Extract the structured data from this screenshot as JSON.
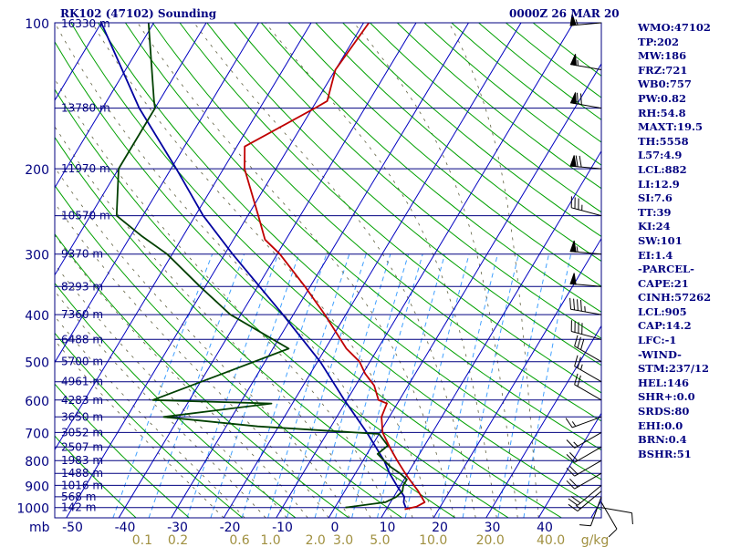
{
  "header": {
    "title": "RK102 (47102) Sounding",
    "datetime": "0000Z 26 MAR 20"
  },
  "stats": [
    "WMO:47102",
    "TP:202",
    "MW:186",
    "FRZ:721",
    "WB0:757",
    "PW:0.82",
    "RH:54.8",
    "MAXT:19.5",
    "TH:5558",
    "L57:4.9",
    "LCL:882",
    "LI:12.9",
    "SI:7.6",
    "TT:39",
    "KI:24",
    "SW:101",
    "EI:1.4",
    "-PARCEL-",
    "CAPE:21",
    "CINH:57262",
    "LCL:905",
    "CAP:14.2",
    "LFC:-1",
    "-WIND-",
    "STM:237/12",
    "HEL:146",
    "SHR+:0.0",
    "SRDS:80",
    "EHI:0.0",
    "BRN:0.4",
    "BSHR:51"
  ],
  "colors": {
    "isobar": "#000080",
    "isotherm": "#0000c0",
    "dry_adiabat": "#00a000",
    "moist_adiabat": "#606040",
    "mixing_ratio": "#40a0ff",
    "temperature": "#c00000",
    "dewpoint": "#004000",
    "parcel": "#0000a0",
    "axis_text": "#000080",
    "mixing_text": "#a09040"
  },
  "chart_data": {
    "type": "skew-t",
    "xlabel_prefix": "mb",
    "x_ticks": [
      "-50",
      "-40",
      "-30",
      "-20",
      "-10",
      "0",
      "10",
      "20",
      "30",
      "40"
    ],
    "x_tick_values": [
      -50,
      -40,
      -30,
      -20,
      -10,
      0,
      10,
      20,
      30,
      40
    ],
    "pressure_ticks": [
      {
        "p": 100,
        "label": "100"
      },
      {
        "p": 200,
        "label": "200"
      },
      {
        "p": 300,
        "label": "300"
      },
      {
        "p": 400,
        "label": "400"
      },
      {
        "p": 500,
        "label": "500"
      },
      {
        "p": 600,
        "label": "600"
      },
      {
        "p": 700,
        "label": "700"
      },
      {
        "p": 800,
        "label": "800"
      },
      {
        "p": 900,
        "label": "900"
      },
      {
        "p": 1000,
        "label": "1000"
      }
    ],
    "mixing_ratio_unit": "g/kg",
    "mixing_ratio_labels": [
      {
        "w": 0.1,
        "label": "0.1"
      },
      {
        "w": 0.2,
        "label": "0.2"
      },
      {
        "w": 0.6,
        "label": "0.6"
      },
      {
        "w": 1.0,
        "label": "1.0"
      },
      {
        "w": 2.0,
        "label": "2.0"
      },
      {
        "w": 3.0,
        "label": "3.0"
      },
      {
        "w": 5.0,
        "label": "5.0"
      },
      {
        "w": 10.0,
        "label": "10.0"
      },
      {
        "w": 20.0,
        "label": "20.0"
      },
      {
        "w": 40.0,
        "label": "40.0"
      }
    ],
    "height_labels": [
      {
        "p": 100,
        "label": "16330 m"
      },
      {
        "p": 150,
        "label": "13780 m"
      },
      {
        "p": 200,
        "label": "11970 m"
      },
      {
        "p": 250,
        "label": "10570 m"
      },
      {
        "p": 300,
        "label": "9370 m"
      },
      {
        "p": 350,
        "label": "8293 m"
      },
      {
        "p": 400,
        "label": "7360 m"
      },
      {
        "p": 450,
        "label": "6488 m"
      },
      {
        "p": 500,
        "label": "5700 m"
      },
      {
        "p": 550,
        "label": "4961 m"
      },
      {
        "p": 600,
        "label": "4283 m"
      },
      {
        "p": 650,
        "label": "3650 m"
      },
      {
        "p": 700,
        "label": "3052 m"
      },
      {
        "p": 750,
        "label": "2507 m"
      },
      {
        "p": 800,
        "label": "1983 m"
      },
      {
        "p": 850,
        "label": "1488 m"
      },
      {
        "p": 900,
        "label": "1016 m"
      },
      {
        "p": 950,
        "label": "568 m"
      },
      {
        "p": 1000,
        "label": "142 m"
      }
    ],
    "temperature": [
      {
        "p": 1008,
        "t": 13.5
      },
      {
        "p": 995,
        "t": 15.5
      },
      {
        "p": 975,
        "t": 16.5
      },
      {
        "p": 925,
        "t": 14.0
      },
      {
        "p": 875,
        "t": 11.0
      },
      {
        "p": 850,
        "t": 9.5
      },
      {
        "p": 800,
        "t": 6.5
      },
      {
        "p": 750,
        "t": 3.5
      },
      {
        "p": 700,
        "t": 0.5
      },
      {
        "p": 650,
        "t": -1.5
      },
      {
        "p": 610,
        "t": -2.0
      },
      {
        "p": 600,
        "t": -4.0
      },
      {
        "p": 560,
        "t": -6.5
      },
      {
        "p": 530,
        "t": -9.5
      },
      {
        "p": 500,
        "t": -12.0
      },
      {
        "p": 470,
        "t": -16.0
      },
      {
        "p": 400,
        "t": -24.0
      },
      {
        "p": 350,
        "t": -31.0
      },
      {
        "p": 300,
        "t": -39.5
      },
      {
        "p": 280,
        "t": -44.0
      },
      {
        "p": 250,
        "t": -48.0
      },
      {
        "p": 200,
        "t": -56.0
      },
      {
        "p": 180,
        "t": -58.5
      },
      {
        "p": 150,
        "t": -49.5
      },
      {
        "p": 145,
        "t": -48.0
      },
      {
        "p": 125,
        "t": -50.0
      },
      {
        "p": 100,
        "t": -49.0
      }
    ],
    "dewpoint": [
      {
        "p": 1000,
        "t": 2.0
      },
      {
        "p": 975,
        "t": 9.0
      },
      {
        "p": 950,
        "t": 10.5
      },
      {
        "p": 925,
        "t": 11.0
      },
      {
        "p": 900,
        "t": 10.5
      },
      {
        "p": 875,
        "t": 10.5
      },
      {
        "p": 850,
        "t": 8.5
      },
      {
        "p": 825,
        "t": 6.0
      },
      {
        "p": 800,
        "t": 4.0
      },
      {
        "p": 775,
        "t": 2.0
      },
      {
        "p": 745,
        "t": 3.0
      },
      {
        "p": 705,
        "t": 0.0
      },
      {
        "p": 680,
        "t": -24.0
      },
      {
        "p": 650,
        "t": -43.0
      },
      {
        "p": 610,
        "t": -24.0
      },
      {
        "p": 600,
        "t": -47.0
      },
      {
        "p": 470,
        "t": -27.0
      },
      {
        "p": 400,
        "t": -42.0
      },
      {
        "p": 350,
        "t": -51.0
      },
      {
        "p": 300,
        "t": -61.0
      },
      {
        "p": 275,
        "t": -68.0
      },
      {
        "p": 250,
        "t": -75.0
      },
      {
        "p": 200,
        "t": -80.0
      },
      {
        "p": 150,
        "t": -80.0
      },
      {
        "p": 145,
        "t": -81.0
      },
      {
        "p": 100,
        "t": -91.0
      }
    ],
    "parcel": [
      {
        "p": 1000,
        "t": 13.5
      },
      {
        "p": 975,
        "t": 12.5
      },
      {
        "p": 950,
        "t": 12.0
      },
      {
        "p": 905,
        "t": 9.5
      },
      {
        "p": 850,
        "t": 6.5
      },
      {
        "p": 800,
        "t": 4.0
      },
      {
        "p": 700,
        "t": -2.5
      },
      {
        "p": 600,
        "t": -10.5
      },
      {
        "p": 500,
        "t": -19.5
      },
      {
        "p": 400,
        "t": -32.0
      },
      {
        "p": 300,
        "t": -48.5
      },
      {
        "p": 250,
        "t": -58.5
      },
      {
        "p": 200,
        "t": -69.0
      },
      {
        "p": 150,
        "t": -83.0
      },
      {
        "p": 100,
        "t": -100.0
      }
    ],
    "wind_barbs": [
      {
        "p": 1000,
        "dir": 100,
        "spd": 10
      },
      {
        "p": 975,
        "dir": 150,
        "spd": 10
      },
      {
        "p": 950,
        "dir": 200,
        "spd": 10
      },
      {
        "p": 925,
        "dir": 230,
        "spd": 15
      },
      {
        "p": 900,
        "dir": 230,
        "spd": 20
      },
      {
        "p": 850,
        "dir": 240,
        "spd": 20
      },
      {
        "p": 800,
        "dir": 240,
        "spd": 20
      },
      {
        "p": 750,
        "dir": 240,
        "spd": 20
      },
      {
        "p": 700,
        "dir": 240,
        "spd": 15
      },
      {
        "p": 650,
        "dir": 250,
        "spd": 15
      },
      {
        "p": 600,
        "dir": 300,
        "spd": 20
      },
      {
        "p": 550,
        "dir": 300,
        "spd": 25
      },
      {
        "p": 500,
        "dir": 300,
        "spd": 30
      },
      {
        "p": 450,
        "dir": 285,
        "spd": 40
      },
      {
        "p": 400,
        "dir": 280,
        "spd": 45
      },
      {
        "p": 350,
        "dir": 275,
        "spd": 50
      },
      {
        "p": 300,
        "dir": 275,
        "spd": 55
      },
      {
        "p": 250,
        "dir": 285,
        "spd": 35
      },
      {
        "p": 200,
        "dir": 275,
        "spd": 70
      },
      {
        "p": 150,
        "dir": 280,
        "spd": 70
      },
      {
        "p": 125,
        "dir": 280,
        "spd": 55
      },
      {
        "p": 100,
        "dir": 265,
        "spd": 55
      }
    ]
  }
}
